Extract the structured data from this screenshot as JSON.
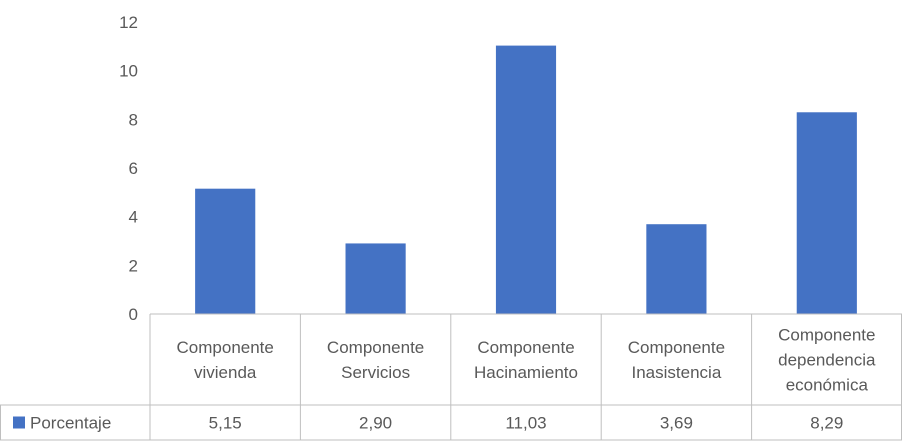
{
  "chart_data": {
    "type": "bar",
    "categories": [
      [
        "Componente",
        "vivienda"
      ],
      [
        "Componente",
        "Servicios"
      ],
      [
        "Componente",
        "Hacinamiento"
      ],
      [
        "Componente",
        "Inasistencia"
      ],
      [
        "Componente",
        "dependencia",
        "económica"
      ]
    ],
    "series": [
      {
        "name": "Porcentaje",
        "values": [
          5.15,
          2.9,
          11.03,
          3.69,
          8.29
        ],
        "labels": [
          "5,15",
          "2,90",
          "11,03",
          "3,69",
          "8,29"
        ]
      }
    ],
    "y_ticks": [
      "0",
      "2",
      "4",
      "6",
      "8",
      "10",
      "12"
    ],
    "ylim": [
      0,
      12
    ],
    "grid": false,
    "legend": "data-table-left",
    "bar_color": "#4472C4",
    "table_border_color": "#BFBFBF"
  }
}
